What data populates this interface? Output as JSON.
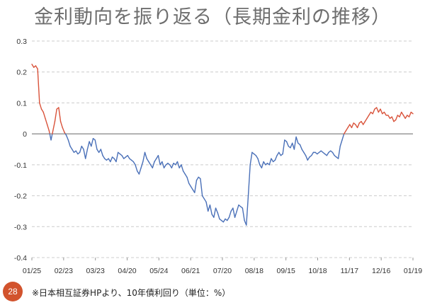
{
  "slide": {
    "title": "金利動向を振り返る（長期金利の推移）",
    "page_number": "28",
    "source_note": "※日本相互証券HPより、10年債利回り（単位：%）"
  },
  "colors": {
    "positive": "#d9533b",
    "negative": "#4a70b8",
    "grid": "#cccccc",
    "zero_line": "#666666",
    "badge": "#d2532d"
  },
  "chart_data": {
    "type": "line",
    "title": "",
    "xlabel": "",
    "ylabel": "",
    "x_tick_labels": [
      "01/25",
      "02/23",
      "03/23",
      "04/20",
      "05/24",
      "06/21",
      "07/20",
      "08/18",
      "09/15",
      "10/18",
      "11/17",
      "12/16",
      "01/19"
    ],
    "y_tick_labels": [
      "0.3",
      "0.2",
      "0.1",
      "0",
      "-0.1",
      "-0.2",
      "-0.3",
      "-0.4"
    ],
    "ylim": [
      -0.4,
      0.3
    ],
    "grid": "horizontal dashed",
    "color_rule": "red when yield ≥ 0, blue when yield < 0",
    "series": [
      {
        "values": [
          0.225,
          0.215,
          0.22,
          0.21,
          0.1,
          0.08,
          0.07,
          0.05,
          0.03,
          0.01,
          -0.02,
          0.01,
          0.04,
          0.08,
          0.085,
          0.04,
          0.02,
          0.005,
          -0.005,
          -0.02,
          -0.04,
          -0.05,
          -0.06,
          -0.055,
          -0.065,
          -0.06,
          -0.04,
          -0.05,
          -0.08,
          -0.05,
          -0.025,
          -0.04,
          -0.015,
          -0.02,
          -0.05,
          -0.06,
          -0.05,
          -0.07,
          -0.08,
          -0.085,
          -0.08,
          -0.09,
          -0.075,
          -0.08,
          -0.09,
          -0.06,
          -0.065,
          -0.07,
          -0.08,
          -0.075,
          -0.07,
          -0.08,
          -0.085,
          -0.09,
          -0.1,
          -0.12,
          -0.13,
          -0.11,
          -0.09,
          -0.06,
          -0.08,
          -0.09,
          -0.1,
          -0.11,
          -0.09,
          -0.08,
          -0.07,
          -0.1,
          -0.09,
          -0.11,
          -0.1,
          -0.095,
          -0.1,
          -0.11,
          -0.095,
          -0.1,
          -0.09,
          -0.11,
          -0.1,
          -0.12,
          -0.13,
          -0.14,
          -0.16,
          -0.17,
          -0.18,
          -0.19,
          -0.15,
          -0.14,
          -0.145,
          -0.2,
          -0.21,
          -0.22,
          -0.25,
          -0.23,
          -0.26,
          -0.27,
          -0.24,
          -0.255,
          -0.275,
          -0.28,
          -0.285,
          -0.275,
          -0.28,
          -0.27,
          -0.25,
          -0.24,
          -0.27,
          -0.25,
          -0.23,
          -0.235,
          -0.24,
          -0.28,
          -0.295,
          -0.2,
          -0.1,
          -0.06,
          -0.065,
          -0.07,
          -0.08,
          -0.1,
          -0.11,
          -0.09,
          -0.1,
          -0.095,
          -0.1,
          -0.08,
          -0.09,
          -0.085,
          -0.07,
          -0.06,
          -0.07,
          -0.065,
          -0.02,
          -0.025,
          -0.04,
          -0.045,
          -0.03,
          -0.05,
          -0.01,
          -0.03,
          -0.035,
          -0.05,
          -0.06,
          -0.07,
          -0.085,
          -0.075,
          -0.07,
          -0.06,
          -0.06,
          -0.065,
          -0.06,
          -0.055,
          -0.06,
          -0.065,
          -0.07,
          -0.06,
          -0.055,
          -0.06,
          -0.07,
          -0.075,
          -0.08,
          -0.04,
          -0.02,
          0.0,
          0.01,
          0.02,
          0.03,
          0.02,
          0.035,
          0.03,
          0.02,
          0.035,
          0.04,
          0.03,
          0.04,
          0.05,
          0.06,
          0.07,
          0.065,
          0.08,
          0.085,
          0.07,
          0.08,
          0.065,
          0.07,
          0.06,
          0.06,
          0.05,
          0.055,
          0.04,
          0.045,
          0.06,
          0.055,
          0.07,
          0.06,
          0.05,
          0.06,
          0.055,
          0.07,
          0.065
        ]
      }
    ]
  }
}
